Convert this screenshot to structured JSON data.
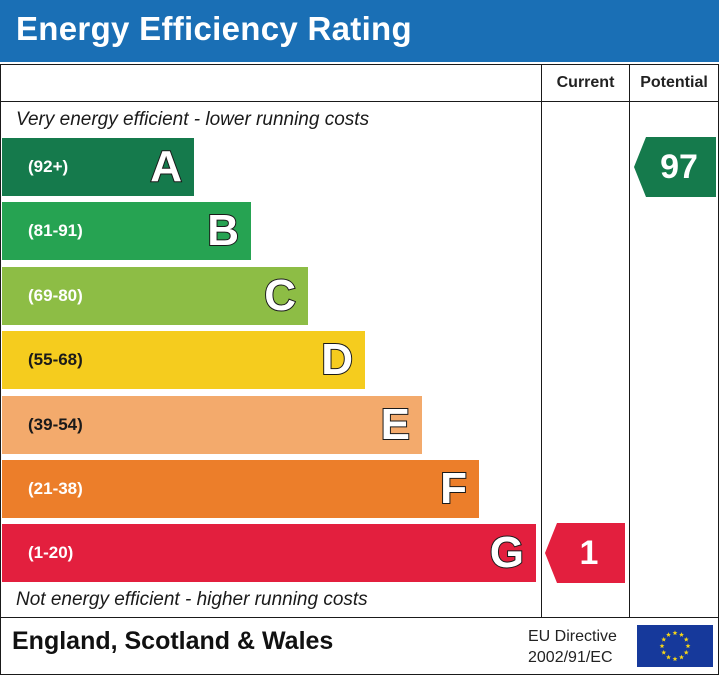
{
  "header": {
    "title": "Energy Efficiency Rating"
  },
  "columns": {
    "current": "Current",
    "potential": "Potential"
  },
  "notes": {
    "top": "Very energy efficient - lower running costs",
    "bottom": "Not energy efficient - higher running costs"
  },
  "footer": {
    "region": "England, Scotland & Wales",
    "directive_line1": "EU Directive",
    "directive_line2": "2002/91/EC"
  },
  "colors": {
    "header": "#1a6fb5",
    "A": "#157a4c",
    "B": "#26a352",
    "C": "#8dbd45",
    "D": "#f5cc1e",
    "E": "#f3aa6c",
    "F": "#ec7e2a",
    "G": "#e31f3e",
    "flag": "#16399b",
    "stars": "#f7d717"
  },
  "chart_data": {
    "type": "bar",
    "title": "Energy Efficiency Rating",
    "categories": [
      "A",
      "B",
      "C",
      "D",
      "E",
      "F",
      "G"
    ],
    "ranges": [
      "(92+)",
      "(81-91)",
      "(69-80)",
      "(55-68)",
      "(39-54)",
      "(21-38)",
      "(1-20)"
    ],
    "current": {
      "value": 1,
      "band": "G"
    },
    "potential": {
      "value": 97,
      "band": "A"
    }
  }
}
